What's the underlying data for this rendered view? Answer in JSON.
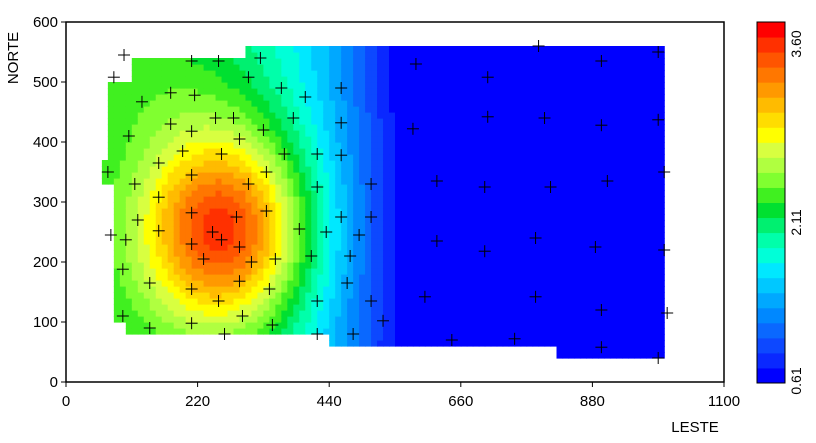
{
  "chart_data": {
    "type": "heatmap",
    "xlabel": "LESTE",
    "ylabel": "NORTE",
    "xlim": [
      0,
      1100
    ],
    "ylim": [
      0,
      600
    ],
    "x_ticks": [
      "0",
      "220",
      "440",
      "660",
      "880",
      "1100"
    ],
    "y_ticks": [
      "0",
      "100",
      "200",
      "300",
      "400",
      "500",
      "600"
    ],
    "colorbar": {
      "min": 0.61,
      "max": 3.6,
      "labels": [
        "0.61",
        "2.11",
        "3.60"
      ],
      "colors": [
        "#0000ff",
        "#0a28ff",
        "#0d48ff",
        "#0a68ff",
        "#0088ff",
        "#00a8ff",
        "#00c8ff",
        "#00e8ff",
        "#00ffd8",
        "#00ffaa",
        "#00f070",
        "#00e030",
        "#40f020",
        "#80ff30",
        "#b0ff40",
        "#d8ff40",
        "#ffff00",
        "#ffdd00",
        "#ffbb00",
        "#ff9900",
        "#ff7700",
        "#ff5500",
        "#ff3000",
        "#ff0000"
      ]
    },
    "field": {
      "description_points": [
        {
          "x": 270,
          "y": 250,
          "value": 3.6
        },
        {
          "x": 130,
          "y": 480,
          "value": 2.6
        },
        {
          "x": 460,
          "y": 250,
          "value": 2.1
        },
        {
          "x": 600,
          "y": 300,
          "value": 1.3
        },
        {
          "x": 900,
          "y": 300,
          "value": 0.85
        },
        {
          "x": 1000,
          "y": 500,
          "value": 0.61
        }
      ]
    },
    "samples": [
      [
        97,
        545
      ],
      [
        80,
        508
      ],
      [
        175,
        482
      ],
      [
        215,
        478
      ],
      [
        127,
        467
      ],
      [
        255,
        535
      ],
      [
        210,
        535
      ],
      [
        325,
        540
      ],
      [
        305,
        508
      ],
      [
        360,
        490
      ],
      [
        380,
        440
      ],
      [
        400,
        475
      ],
      [
        460,
        490
      ],
      [
        460,
        432
      ],
      [
        585,
        530
      ],
      [
        705,
        508
      ],
      [
        790,
        560
      ],
      [
        895,
        535
      ],
      [
        990,
        550
      ],
      [
        105,
        410
      ],
      [
        175,
        430
      ],
      [
        210,
        418
      ],
      [
        250,
        440
      ],
      [
        280,
        440
      ],
      [
        290,
        405
      ],
      [
        330,
        420
      ],
      [
        580,
        422
      ],
      [
        705,
        442
      ],
      [
        800,
        440
      ],
      [
        895,
        428
      ],
      [
        990,
        437
      ],
      [
        70,
        350
      ],
      [
        115,
        330
      ],
      [
        155,
        365
      ],
      [
        195,
        385
      ],
      [
        210,
        345
      ],
      [
        260,
        380
      ],
      [
        305,
        330
      ],
      [
        335,
        350
      ],
      [
        365,
        380
      ],
      [
        420,
        380
      ],
      [
        460,
        378
      ],
      [
        420,
        325
      ],
      [
        510,
        330
      ],
      [
        620,
        335
      ],
      [
        700,
        325
      ],
      [
        810,
        325
      ],
      [
        905,
        335
      ],
      [
        1000,
        350
      ],
      [
        120,
        270
      ],
      [
        155,
        308
      ],
      [
        210,
        282
      ],
      [
        245,
        250
      ],
      [
        285,
        275
      ],
      [
        335,
        285
      ],
      [
        390,
        255
      ],
      [
        435,
        250
      ],
      [
        460,
        275
      ],
      [
        490,
        245
      ],
      [
        510,
        275
      ],
      [
        75,
        245
      ],
      [
        100,
        237
      ],
      [
        155,
        252
      ],
      [
        210,
        230
      ],
      [
        230,
        205
      ],
      [
        260,
        237
      ],
      [
        290,
        225
      ],
      [
        310,
        200
      ],
      [
        350,
        205
      ],
      [
        410,
        210
      ],
      [
        475,
        210
      ],
      [
        620,
        235
      ],
      [
        700,
        218
      ],
      [
        785,
        240
      ],
      [
        885,
        225
      ],
      [
        1000,
        220
      ],
      [
        95,
        188
      ],
      [
        140,
        165
      ],
      [
        210,
        155
      ],
      [
        255,
        135
      ],
      [
        290,
        168
      ],
      [
        340,
        155
      ],
      [
        420,
        135
      ],
      [
        470,
        165
      ],
      [
        510,
        135
      ],
      [
        600,
        142
      ],
      [
        785,
        142
      ],
      [
        95,
        110
      ],
      [
        140,
        90
      ],
      [
        210,
        98
      ],
      [
        265,
        80
      ],
      [
        295,
        110
      ],
      [
        345,
        95
      ],
      [
        420,
        80
      ],
      [
        480,
        80
      ],
      [
        530,
        102
      ],
      [
        645,
        70
      ],
      [
        750,
        72
      ],
      [
        895,
        120
      ],
      [
        895,
        58
      ],
      [
        990,
        40
      ],
      [
        1005,
        115
      ]
    ]
  }
}
